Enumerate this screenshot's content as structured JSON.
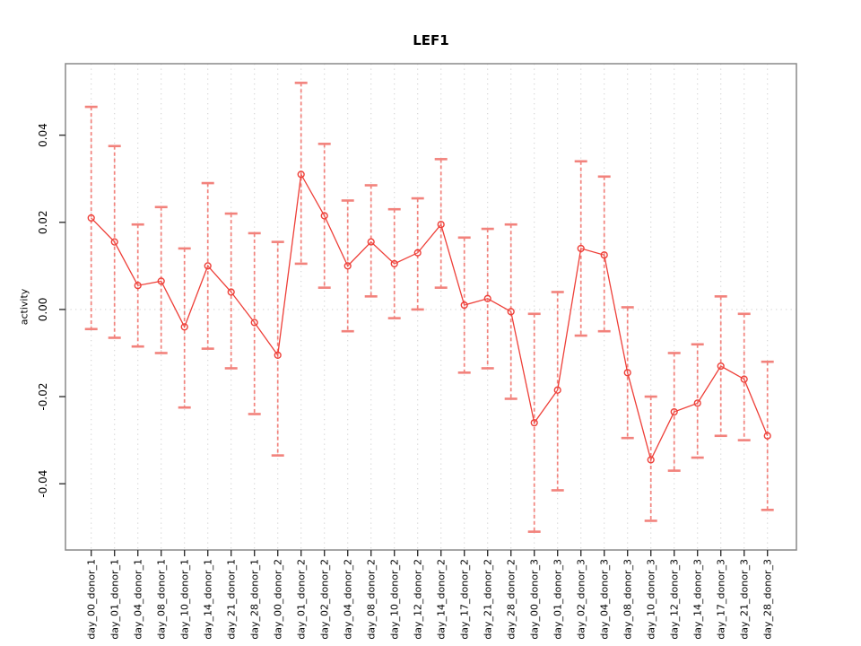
{
  "title": "LEF1",
  "chart_data": {
    "type": "line",
    "title": "LEF1",
    "xlabel": "",
    "ylabel": "activity",
    "legend_position": "none",
    "grid": "vertical dotted gridline per category; dotted horizontal line at y=0",
    "marker": "open-circle",
    "error_bars": true,
    "ylim": [
      -0.0552,
      0.0564
    ],
    "yticks": [
      -0.04,
      -0.02,
      0.0,
      0.02,
      0.04
    ],
    "ytick_labels": [
      "-0.04",
      "-0.02",
      "0.00",
      "0.02",
      "0.04"
    ],
    "categories": [
      "day_00_donor_1",
      "day_01_donor_1",
      "day_04_donor_1",
      "day_08_donor_1",
      "day_10_donor_1",
      "day_14_donor_1",
      "day_21_donor_1",
      "day_28_donor_1",
      "day_00_donor_2",
      "day_01_donor_2",
      "day_02_donor_2",
      "day_04_donor_2",
      "day_08_donor_2",
      "day_10_donor_2",
      "day_12_donor_2",
      "day_14_donor_2",
      "day_17_donor_2",
      "day_21_donor_2",
      "day_28_donor_2",
      "day_00_donor_3",
      "day_01_donor_3",
      "day_02_donor_3",
      "day_04_donor_3",
      "day_08_donor_3",
      "day_10_donor_3",
      "day_12_donor_3",
      "day_14_donor_3",
      "day_17_donor_3",
      "day_21_donor_3",
      "day_28_donor_3"
    ],
    "series": [
      {
        "name": "activity",
        "values": [
          0.021,
          0.0155,
          0.0055,
          0.0065,
          -0.004,
          0.01,
          0.004,
          -0.003,
          -0.0105,
          0.031,
          0.0215,
          0.01,
          0.0155,
          0.0105,
          0.013,
          0.0195,
          0.001,
          0.0025,
          -0.0005,
          -0.026,
          -0.0185,
          0.014,
          0.0125,
          -0.0145,
          -0.0345,
          -0.0235,
          -0.0215,
          -0.013,
          -0.016,
          -0.029
        ],
        "error_low": [
          -0.0045,
          -0.0065,
          -0.0085,
          -0.01,
          -0.0225,
          -0.009,
          -0.0135,
          -0.024,
          -0.0335,
          0.0105,
          0.005,
          -0.005,
          0.003,
          -0.002,
          0.0,
          0.005,
          -0.0145,
          -0.0135,
          -0.0205,
          -0.051,
          -0.0415,
          -0.006,
          -0.005,
          -0.0295,
          -0.0485,
          -0.037,
          -0.034,
          -0.029,
          -0.03,
          -0.046
        ],
        "error_high": [
          0.0465,
          0.0375,
          0.0195,
          0.0235,
          0.014,
          0.029,
          0.022,
          0.0175,
          0.0155,
          0.052,
          0.038,
          0.025,
          0.0285,
          0.023,
          0.0255,
          0.0345,
          0.0165,
          0.0185,
          0.0195,
          -0.001,
          0.004,
          0.034,
          0.0305,
          0.0005,
          -0.02,
          -0.01,
          -0.008,
          0.003,
          -0.001,
          -0.012
        ]
      }
    ],
    "colors": {
      "series": "#ee3f38",
      "error_bar": "#f2827c",
      "gridline": "#d4d4d4",
      "frame": "#898989",
      "tick": "#333333",
      "text": "#000000",
      "background": "#ffffff"
    }
  }
}
